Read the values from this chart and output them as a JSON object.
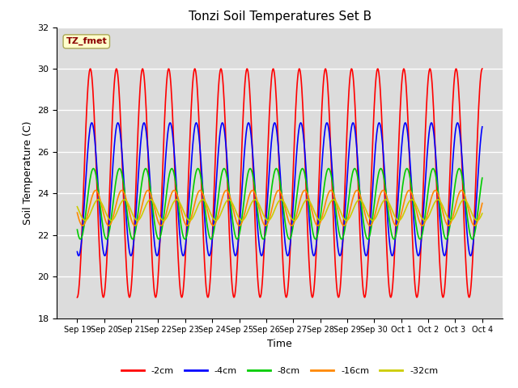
{
  "title": "Tonzi Soil Temperatures Set B",
  "xlabel": "Time",
  "ylabel": "Soil Temperature (C)",
  "ylim": [
    18,
    32
  ],
  "yticks": [
    18,
    20,
    22,
    24,
    26,
    28,
    30,
    32
  ],
  "background_color": "#dcdcdc",
  "annotation_text": "TZ_fmet",
  "annotation_color": "#8b0000",
  "annotation_bg": "#ffffcc",
  "series": {
    "-2cm": {
      "color": "#ff0000",
      "lw": 1.2,
      "amplitude": 5.5,
      "mean": 24.5,
      "phase": 0.0
    },
    "-4cm": {
      "color": "#0000ff",
      "lw": 1.2,
      "amplitude": 3.2,
      "mean": 24.2,
      "phase": 0.35
    },
    "-8cm": {
      "color": "#00cc00",
      "lw": 1.2,
      "amplitude": 1.7,
      "mean": 23.5,
      "phase": 0.75
    },
    "-16cm": {
      "color": "#ff8800",
      "lw": 1.2,
      "amplitude": 0.85,
      "mean": 23.3,
      "phase": 1.3
    },
    "-32cm": {
      "color": "#cccc00",
      "lw": 1.2,
      "amplitude": 0.5,
      "mean": 23.2,
      "phase": 1.9
    }
  },
  "n_days": 15.5,
  "n_points": 800,
  "xtick_labels": [
    "Sep 19",
    "Sep 20",
    "Sep 21",
    "Sep 22",
    "Sep 23",
    "Sep 24",
    "Sep 25",
    "Sep 26",
    "Sep 27",
    "Sep 28",
    "Sep 29",
    "Sep 30",
    "Oct 1",
    "Oct 2",
    "Oct 3",
    "Oct 4"
  ],
  "legend_labels": [
    "-2cm",
    "-4cm",
    "-8cm",
    "-16cm",
    "-32cm"
  ],
  "legend_colors": [
    "#ff0000",
    "#0000ff",
    "#00cc00",
    "#ff8800",
    "#cccc00"
  ]
}
